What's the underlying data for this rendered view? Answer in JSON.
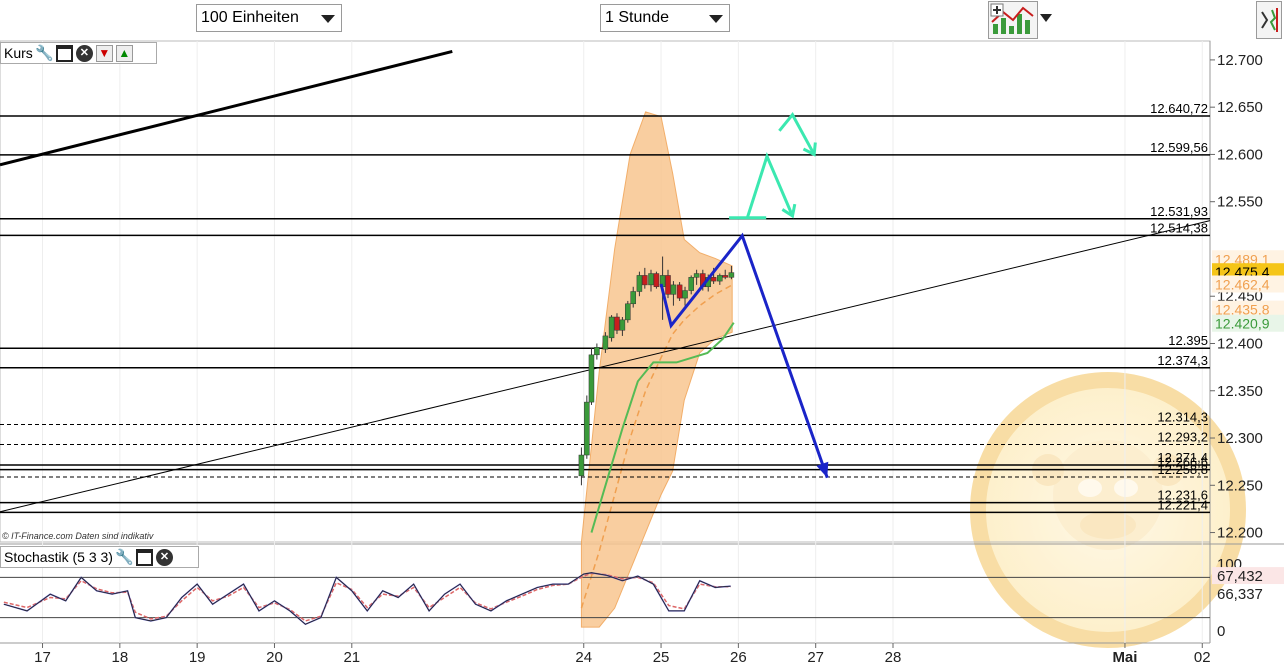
{
  "toolbar": {
    "units_select": "100 Einheiten",
    "interval_select": "1 Stunde"
  },
  "main_panel": {
    "title": "Kurs"
  },
  "stoch_panel": {
    "title": "Stochastik (5 3 3)"
  },
  "copyright": "© IT-Finance.com  Daten sind indikativ",
  "colors": {
    "candle_up": "#3a9a3a",
    "candle_down": "#c81e1e",
    "bollinger_fill": "#f8c690",
    "bollinger_line": "#f0a050",
    "sma_line": "#55bb55",
    "scenario_blue": "#1a24c8",
    "scenario_mint": "#3be8b0",
    "level_line": "#000000",
    "price_badge": "#f5c518",
    "stoch_k": "#6666cc",
    "stoch_d": "#dd6666"
  },
  "chart_data": {
    "type": "candlestick",
    "y_range": [
      12190,
      12720
    ],
    "y_ticks": [
      "12.700",
      "12.650",
      "12.600",
      "12.550",
      "12.450",
      "12.400",
      "12.350",
      "12.300",
      "12.250",
      "12.200"
    ],
    "x_range_days": [
      16.45,
      32.1
    ],
    "x_ticks": [
      {
        "label": "17",
        "day": 17
      },
      {
        "label": "18",
        "day": 18
      },
      {
        "label": "19",
        "day": 19
      },
      {
        "label": "20",
        "day": 20
      },
      {
        "label": "21",
        "day": 21
      },
      {
        "label": "24",
        "day": 24
      },
      {
        "label": "25",
        "day": 25
      },
      {
        "label": "26",
        "day": 26
      },
      {
        "label": "27",
        "day": 27
      },
      {
        "label": "28",
        "day": 28
      },
      {
        "label": "Mai",
        "day": 31
      },
      {
        "label": "02",
        "day": 32
      }
    ],
    "horizontal_levels": [
      {
        "label": "12.640,72",
        "value": 12640.72,
        "style": "solid"
      },
      {
        "label": "12.599,56",
        "value": 12599.56,
        "style": "solid"
      },
      {
        "label": "12.531,93",
        "value": 12531.93,
        "style": "solid"
      },
      {
        "label": "12.514,38",
        "value": 12514.38,
        "style": "solid"
      },
      {
        "label": "12.395",
        "value": 12395,
        "style": "solid"
      },
      {
        "label": "12.374,3",
        "value": 12374.3,
        "style": "solid"
      },
      {
        "label": "12.314,3",
        "value": 12314.3,
        "style": "dashed"
      },
      {
        "label": "12.293,2",
        "value": 12293.2,
        "style": "dashed"
      },
      {
        "label": "12.271,4",
        "value": 12271.4,
        "style": "solid"
      },
      {
        "label": "12.266,6",
        "value": 12266.6,
        "style": "solid"
      },
      {
        "label": "12.258,8",
        "value": 12258.8,
        "style": "dashed"
      },
      {
        "label": "12.231,6",
        "value": 12231.6,
        "style": "solid"
      },
      {
        "label": "12.221,4",
        "value": 12221.4,
        "style": "solid"
      }
    ],
    "price_labels": [
      {
        "label": "12.489,1",
        "value": 12489.1,
        "kind": "band"
      },
      {
        "label": "12.475,4",
        "value": 12475.4,
        "kind": "current"
      },
      {
        "label": "12.462,4",
        "value": 12462.4,
        "kind": "band"
      },
      {
        "label": "12.435,8",
        "value": 12435.8,
        "kind": "band"
      },
      {
        "label": "12.420,9",
        "value": 12420.9,
        "kind": "sma"
      }
    ],
    "candles": [
      {
        "day": 23.97,
        "o": 12260,
        "h": 12290,
        "l": 12250,
        "c": 12282
      },
      {
        "day": 24.04,
        "o": 12282,
        "h": 12345,
        "l": 12278,
        "c": 12338
      },
      {
        "day": 24.1,
        "o": 12338,
        "h": 12395,
        "l": 12335,
        "c": 12388
      },
      {
        "day": 24.17,
        "o": 12388,
        "h": 12400,
        "l": 12383,
        "c": 12396
      },
      {
        "day": 24.28,
        "o": 12394,
        "h": 12412,
        "l": 12390,
        "c": 12408
      },
      {
        "day": 24.36,
        "o": 12406,
        "h": 12430,
        "l": 12402,
        "c": 12428
      },
      {
        "day": 24.43,
        "o": 12428,
        "h": 12432,
        "l": 12410,
        "c": 12414
      },
      {
        "day": 24.5,
        "o": 12414,
        "h": 12428,
        "l": 12408,
        "c": 12425
      },
      {
        "day": 24.57,
        "o": 12425,
        "h": 12445,
        "l": 12422,
        "c": 12442
      },
      {
        "day": 24.64,
        "o": 12442,
        "h": 12460,
        "l": 12438,
        "c": 12455
      },
      {
        "day": 24.72,
        "o": 12455,
        "h": 12476,
        "l": 12450,
        "c": 12472
      },
      {
        "day": 24.79,
        "o": 12472,
        "h": 12480,
        "l": 12458,
        "c": 12462
      },
      {
        "day": 24.87,
        "o": 12462,
        "h": 12478,
        "l": 12455,
        "c": 12474
      },
      {
        "day": 24.94,
        "o": 12474,
        "h": 12476,
        "l": 12458,
        "c": 12460
      },
      {
        "day": 25.02,
        "o": 12460,
        "h": 12492,
        "l": 12425,
        "c": 12472
      },
      {
        "day": 25.09,
        "o": 12472,
        "h": 12478,
        "l": 12448,
        "c": 12452
      },
      {
        "day": 25.16,
        "o": 12452,
        "h": 12466,
        "l": 12440,
        "c": 12462
      },
      {
        "day": 25.24,
        "o": 12462,
        "h": 12465,
        "l": 12445,
        "c": 12448
      },
      {
        "day": 25.31,
        "o": 12448,
        "h": 12460,
        "l": 12440,
        "c": 12456
      },
      {
        "day": 25.39,
        "o": 12456,
        "h": 12472,
        "l": 12452,
        "c": 12470
      },
      {
        "day": 25.46,
        "o": 12470,
        "h": 12478,
        "l": 12462,
        "c": 12474
      },
      {
        "day": 25.54,
        "o": 12474,
        "h": 12478,
        "l": 12456,
        "c": 12460
      },
      {
        "day": 25.61,
        "o": 12460,
        "h": 12473,
        "l": 12455,
        "c": 12470
      },
      {
        "day": 25.68,
        "o": 12470,
        "h": 12480,
        "l": 12463,
        "c": 12466
      },
      {
        "day": 25.76,
        "o": 12466,
        "h": 12474,
        "l": 12462,
        "c": 12472
      },
      {
        "day": 25.83,
        "o": 12472,
        "h": 12478,
        "l": 12468,
        "c": 12470
      },
      {
        "day": 25.91,
        "o": 12470,
        "h": 12482,
        "l": 12468,
        "c": 12475
      }
    ],
    "bollinger": {
      "day": [
        23.97,
        24.2,
        24.4,
        24.6,
        24.8,
        25.0,
        25.15,
        25.3,
        25.5,
        25.7,
        25.92
      ],
      "upper": [
        12190,
        12370,
        12500,
        12600,
        12645,
        12640,
        12580,
        12510,
        12496,
        12490,
        12482
      ],
      "middle": [
        12120,
        12180,
        12240,
        12300,
        12350,
        12385,
        12410,
        12425,
        12440,
        12452,
        12462
      ],
      "lower": [
        12100,
        12100,
        12120,
        12160,
        12200,
        12240,
        12265,
        12340,
        12390,
        12405,
        12412
      ]
    },
    "sma": {
      "day": [
        24.1,
        24.3,
        24.5,
        24.7,
        24.9,
        25.0,
        25.2,
        25.4,
        25.6,
        25.8,
        25.94
      ],
      "values": [
        12200,
        12255,
        12310,
        12360,
        12380,
        12380,
        12380,
        12385,
        12390,
        12405,
        12422
      ]
    },
    "trendlines": [
      {
        "day": [
          16.45,
          22.3
        ],
        "values": [
          12589,
          12709
        ],
        "width": 3
      },
      {
        "day": [
          16.45,
          32.1
        ],
        "values": [
          12222,
          12530
        ],
        "width": 1
      }
    ],
    "scenario_blue": {
      "day": [
        25.0,
        25.13,
        26.05,
        27.15
      ],
      "values": [
        12463,
        12419,
        12514,
        12258
      ]
    },
    "scenario_mint": [
      {
        "day": [
          25.88,
          26.36
        ],
        "values": [
          12533,
          12533
        ]
      },
      {
        "day": [
          26.12,
          26.37,
          26.7
        ],
        "values": [
          12534,
          12598,
          12535
        ]
      },
      {
        "day": [
          26.53,
          26.7,
          26.98
        ],
        "values": [
          12625,
          12642,
          12600
        ]
      }
    ],
    "stochastic": {
      "ticks": [
        "100",
        "67,432",
        "66,337",
        "0"
      ],
      "y_range": [
        0,
        100
      ],
      "ref_lines": [
        80,
        20
      ],
      "day": [
        16.5,
        16.8,
        17.1,
        17.3,
        17.5,
        17.7,
        17.9,
        18.1,
        18.2,
        18.4,
        18.6,
        18.8,
        19.0,
        19.2,
        19.4,
        19.6,
        19.8,
        20.0,
        20.2,
        20.4,
        20.6,
        20.8,
        21.0,
        21.2,
        21.4,
        21.6,
        21.8,
        22.0,
        22.2,
        22.4,
        22.6,
        22.8,
        23.0,
        23.2,
        23.4,
        23.6,
        23.8,
        24.0,
        24.1,
        24.3,
        24.5,
        24.7,
        24.9,
        25.1,
        25.3,
        25.5,
        25.7,
        25.9
      ],
      "k": [
        40,
        30,
        55,
        45,
        80,
        60,
        55,
        60,
        20,
        15,
        20,
        50,
        70,
        40,
        55,
        70,
        30,
        45,
        30,
        10,
        20,
        80,
        60,
        30,
        60,
        50,
        70,
        30,
        55,
        70,
        40,
        30,
        45,
        55,
        65,
        70,
        70,
        85,
        87,
        83,
        75,
        82,
        70,
        30,
        30,
        75,
        65,
        67
      ],
      "d": [
        43,
        35,
        50,
        48,
        75,
        63,
        57,
        58,
        28,
        18,
        22,
        45,
        65,
        45,
        52,
        65,
        35,
        42,
        32,
        15,
        22,
        72,
        62,
        35,
        55,
        52,
        65,
        35,
        50,
        65,
        42,
        33,
        43,
        52,
        62,
        68,
        70,
        82,
        86,
        84,
        78,
        80,
        72,
        38,
        33,
        70,
        66,
        66
      ]
    }
  }
}
